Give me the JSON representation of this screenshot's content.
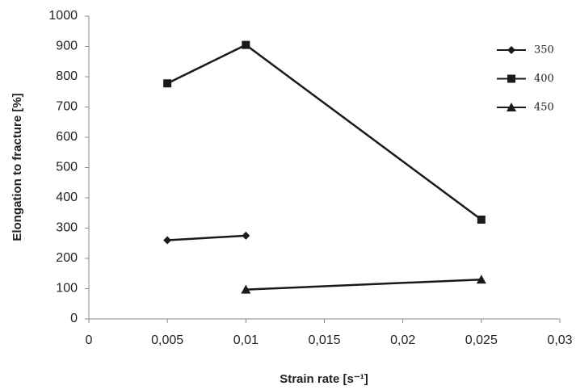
{
  "chart_data": {
    "type": "line",
    "x_label": "Strain rate [s⁻¹]",
    "y_label": "Elongation to fracture [%]",
    "x": [
      0.005,
      0.01,
      0.025
    ],
    "series": [
      {
        "name": "350",
        "color": "#1a1a1a",
        "marker": "diamond",
        "values": [
          260,
          275,
          null
        ]
      },
      {
        "name": "400",
        "color": "#1a1a1a",
        "marker": "square",
        "values": [
          778,
          905,
          328
        ]
      },
      {
        "name": "450",
        "color": "#1a1a1a",
        "marker": "triangle",
        "values": [
          null,
          97,
          130
        ]
      }
    ],
    "xlim": [
      0,
      0.03
    ],
    "xticks": [
      0,
      {
        "value": 0.005,
        "label": "0,005"
      },
      {
        "value": 0.01,
        "label": "0,01"
      },
      {
        "value": 0.015,
        "label": "0,015"
      },
      {
        "value": 0.02,
        "label": "0,02"
      },
      {
        "value": 0.025,
        "label": "0,025"
      },
      {
        "value": 0.03,
        "label": "0,03"
      }
    ],
    "ylim": [
      0,
      1000
    ],
    "yticks": [
      0,
      100,
      200,
      300,
      400,
      500,
      600,
      700,
      800,
      900,
      1000
    ],
    "grid": false,
    "legend": "top-right"
  }
}
